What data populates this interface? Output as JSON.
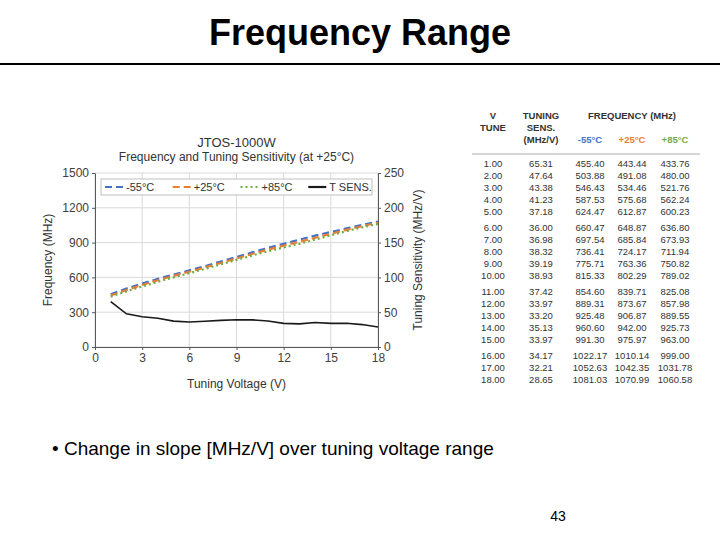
{
  "slide": {
    "title": "Frequency Range",
    "bullets": [
      "• Change in slope [MHz/V] over tuning voltage range"
    ],
    "page_number": 43
  },
  "chart_data": {
    "type": "line",
    "title": "JTOS-1000W",
    "subtitle": "Frequency and Tuning Sensitivity (at +25°C)",
    "x_label": "Tuning Voltage (V)",
    "y_label": "Frequency (MHz)",
    "y2_label": "Tuning Sensitivity (MHz/V)",
    "x": [
      1,
      2,
      3,
      4,
      5,
      6,
      7,
      8,
      9,
      10,
      11,
      12,
      13,
      14,
      15,
      16,
      17,
      18
    ],
    "xlim": [
      0,
      18
    ],
    "xticks": [
      0,
      3,
      6,
      9,
      12,
      15,
      18
    ],
    "ylim": [
      0,
      1500
    ],
    "yticks": [
      0,
      300,
      600,
      900,
      1200,
      1500
    ],
    "y2lim": [
      0,
      250
    ],
    "y2ticks": [
      0,
      50,
      100,
      150,
      200,
      250
    ],
    "grid": true,
    "legend": "top",
    "series": [
      {
        "name": "-55°C",
        "color": "#4472c4",
        "line_style": "dashed",
        "values": [
          455.4,
          503.88,
          546.43,
          587.53,
          624.47,
          660.47,
          697.54,
          736.41,
          775.71,
          815.33,
          854.6,
          889.31,
          925.48,
          960.6,
          991.3,
          1022.17,
          1052.63,
          1081.03
        ]
      },
      {
        "name": "+25°C",
        "color": "#ed7d31",
        "line_style": "dashed",
        "values": [
          443.44,
          491.08,
          534.46,
          575.68,
          612.87,
          648.87,
          685.84,
          724.17,
          763.36,
          802.29,
          839.71,
          873.67,
          906.87,
          942.0,
          975.97,
          1010.14,
          1042.35,
          1070.99
        ]
      },
      {
        "name": "+85°C",
        "color": "#70ad47",
        "line_style": "dotted",
        "values": [
          433.76,
          480.0,
          521.76,
          562.24,
          600.23,
          636.8,
          673.93,
          711.94,
          750.82,
          789.02,
          825.08,
          857.98,
          889.55,
          925.73,
          963.0,
          999.0,
          1031.78,
          1060.58
        ]
      },
      {
        "name": "T SENS.",
        "color": "#1a1a1a",
        "line_style": "solid",
        "axis": "y2",
        "values": [
          65.31,
          47.64,
          43.38,
          41.23,
          37.18,
          36.0,
          36.98,
          38.32,
          39.19,
          38.93,
          37.42,
          33.97,
          33.2,
          35.13,
          33.97,
          34.17,
          32.21,
          28.65
        ]
      }
    ]
  },
  "table": {
    "columns": [
      [
        "V",
        "TUNE"
      ],
      [
        "TUNING",
        "SENS.",
        "(MHz/V)"
      ]
    ],
    "group_header": "FREQUENCY (MHz)",
    "sub_columns": [
      "-55°C",
      "+25°C",
      "+85°C"
    ],
    "rows": [
      [
        "1.00",
        "65.31",
        "455.40",
        "443.44",
        "433.76"
      ],
      [
        "2.00",
        "47.64",
        "503.88",
        "491.08",
        "480.00"
      ],
      [
        "3.00",
        "43.38",
        "546.43",
        "534.46",
        "521.76"
      ],
      [
        "4.00",
        "41.23",
        "587.53",
        "575.68",
        "562.24"
      ],
      [
        "5.00",
        "37.18",
        "624.47",
        "612.87",
        "600.23"
      ],
      [
        "6.00",
        "36.00",
        "660.47",
        "648.87",
        "636.80"
      ],
      [
        "7.00",
        "36.98",
        "697.54",
        "685.84",
        "673.93"
      ],
      [
        "8.00",
        "38.32",
        "736.41",
        "724.17",
        "711.94"
      ],
      [
        "9.00",
        "39.19",
        "775.71",
        "763.36",
        "750.82"
      ],
      [
        "10.00",
        "38.93",
        "815.33",
        "802.29",
        "789.02"
      ],
      [
        "11.00",
        "37.42",
        "854.60",
        "839.71",
        "825.08"
      ],
      [
        "12.00",
        "33.97",
        "889.31",
        "873.67",
        "857.98"
      ],
      [
        "13.00",
        "33.20",
        "925.48",
        "906.87",
        "889.55"
      ],
      [
        "14.00",
        "35.13",
        "960.60",
        "942.00",
        "925.73"
      ],
      [
        "15.00",
        "33.97",
        "991.30",
        "975.97",
        "963.00"
      ],
      [
        "16.00",
        "34.17",
        "1022.17",
        "1010.14",
        "999.00"
      ],
      [
        "17.00",
        "32.21",
        "1052.63",
        "1042.35",
        "1031.78"
      ],
      [
        "18.00",
        "28.65",
        "1081.03",
        "1070.99",
        "1060.58"
      ]
    ]
  }
}
